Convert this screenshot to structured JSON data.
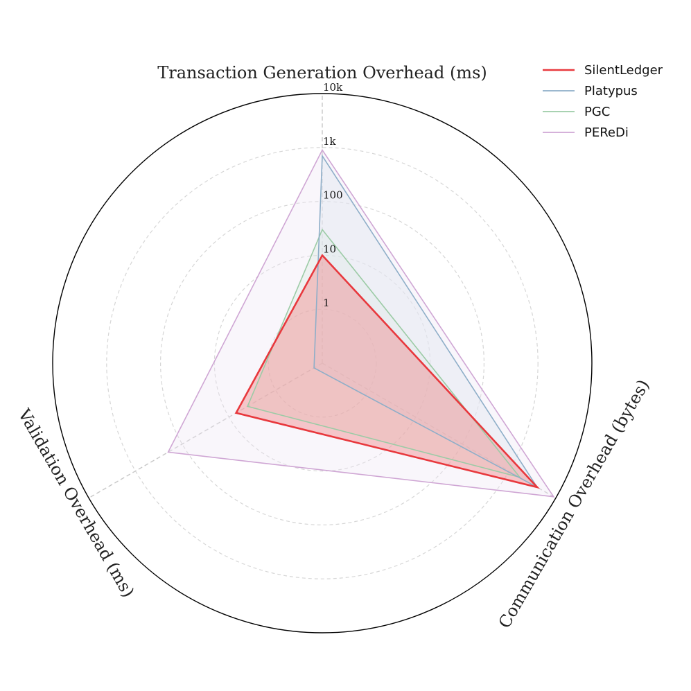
{
  "chart_data": {
    "type": "radar",
    "scale": "log10",
    "rlim": [
      0.1,
      10000
    ],
    "ticks": [
      {
        "value": 1,
        "label": "1"
      },
      {
        "value": 10,
        "label": "10"
      },
      {
        "value": 100,
        "label": "100"
      },
      {
        "value": 1000,
        "label": "1k"
      },
      {
        "value": 10000,
        "label": "10k"
      }
    ],
    "axes": [
      {
        "label": "Transaction Generation Overhead (ms)"
      },
      {
        "label": "Communication Overhead (bytes)"
      },
      {
        "label": "Validation Overhead (ms)"
      }
    ],
    "grid": true,
    "legend_position": "top-right",
    "series": [
      {
        "name": "SilentLedger",
        "values": [
          10,
          4000,
          7
        ],
        "color": "#e8383d",
        "fill": "#f08a8c",
        "fill_opacity": 0.45,
        "stroke_width": 2.6
      },
      {
        "name": "Platypus",
        "values": [
          700,
          4000,
          0.15
        ],
        "color": "#8eaec8",
        "fill": "#dfe6f0",
        "fill_opacity": 0.45,
        "stroke_width": 1.6
      },
      {
        "name": "PGC",
        "values": [
          30,
          1700,
          4
        ],
        "color": "#9ccba6",
        "fill": "#cfe6d3",
        "fill_opacity": 0.25,
        "stroke_width": 1.6
      },
      {
        "name": "PEReDi",
        "values": [
          900,
          9000,
          200
        ],
        "color": "#cfa6d4",
        "fill": "#efe6f3",
        "fill_opacity": 0.35,
        "stroke_width": 1.6
      }
    ]
  }
}
